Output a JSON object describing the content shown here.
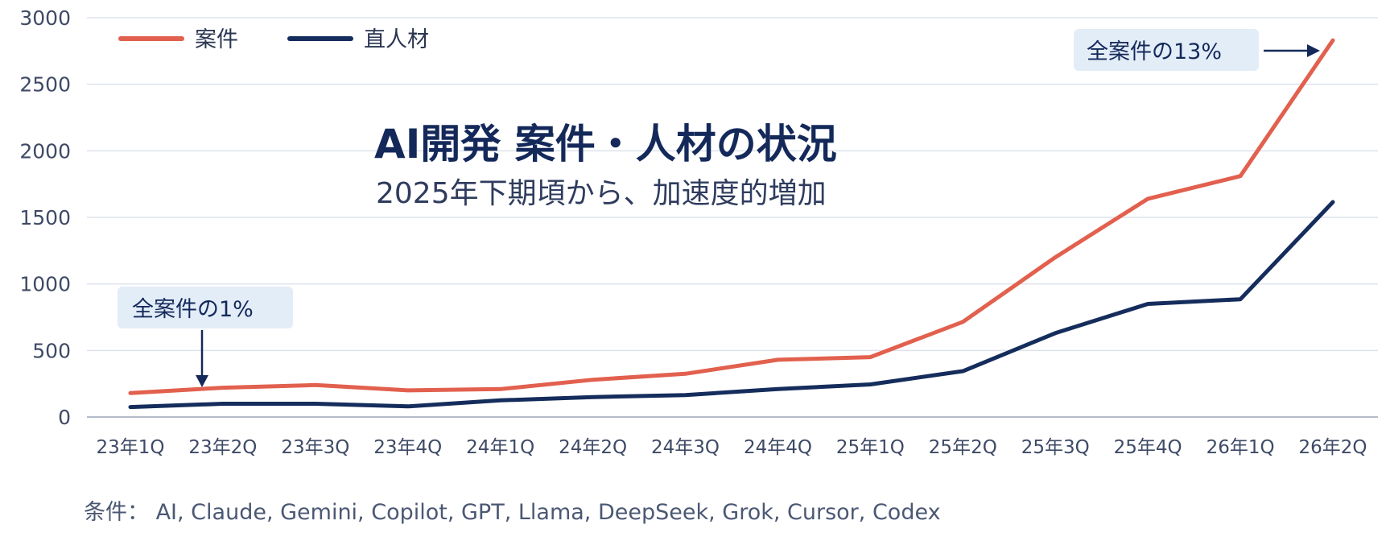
{
  "chart_data": {
    "type": "line",
    "title": "AI開発 案件・人材の状況",
    "subtitle": "2025年下期頃から、加速度的増加",
    "categories": [
      "23年1Q",
      "23年2Q",
      "23年3Q",
      "23年4Q",
      "24年1Q",
      "24年2Q",
      "24年3Q",
      "24年4Q",
      "25年1Q",
      "25年2Q",
      "25年3Q",
      "25年4Q",
      "26年1Q",
      "26年2Q"
    ],
    "series": [
      {
        "name": "案件",
        "color": "#e2604e",
        "values": [
          180,
          220,
          240,
          200,
          210,
          280,
          325,
          430,
          450,
          715,
          1200,
          1640,
          1810,
          2830
        ]
      },
      {
        "name": "直人材",
        "color": "#152d5c",
        "values": [
          75,
          100,
          100,
          80,
          125,
          150,
          165,
          210,
          245,
          345,
          630,
          850,
          885,
          1615
        ]
      }
    ],
    "ylim": [
      0,
      3000
    ],
    "yticks": [
      0,
      500,
      1000,
      1500,
      2000,
      2500,
      3000
    ],
    "grid": true,
    "legend": "top-left",
    "annotations": [
      {
        "text": "全案件の1%"
      },
      {
        "text": "全案件の13%"
      }
    ],
    "footnote": "条件： AI, Claude, Gemini, Copilot, GPT, Llama, DeepSeek, Grok, Cursor, Codex"
  }
}
